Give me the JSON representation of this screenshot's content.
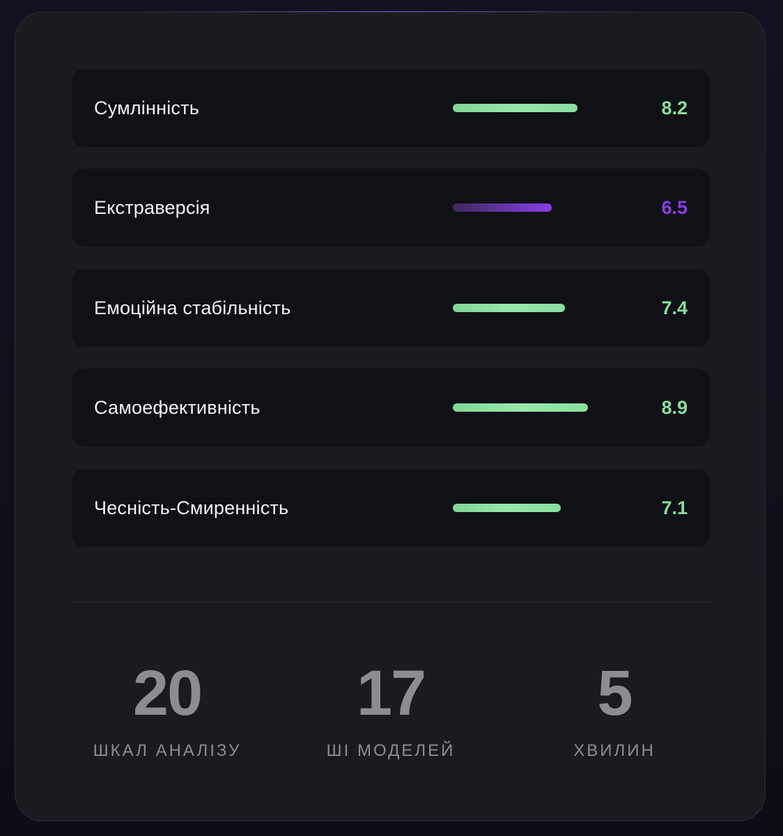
{
  "traits": [
    {
      "label": "Сумлінність",
      "value": "8.2",
      "score": 8.2,
      "color": "#86e09b",
      "style": "green"
    },
    {
      "label": "Екстраверсія",
      "value": "6.5",
      "score": 6.5,
      "color": "#8a3ee8",
      "style": "purple"
    },
    {
      "label": "Емоційна стабільність",
      "value": "7.4",
      "score": 7.4,
      "color": "#86e09b",
      "style": "green"
    },
    {
      "label": "Самоефективність",
      "value": "8.9",
      "score": 8.9,
      "color": "#86e09b",
      "style": "green"
    },
    {
      "label": "Чесність-Смиренність",
      "value": "7.1",
      "score": 7.1,
      "color": "#86e09b",
      "style": "green"
    }
  ],
  "stats": [
    {
      "number": "20",
      "label": "ШКАЛ АНАЛІЗУ"
    },
    {
      "number": "17",
      "label": "ШІ МОДЕЛЕЙ"
    },
    {
      "number": "5",
      "label": "ХВИЛИН"
    }
  ],
  "colors": {
    "accent_green": "#86e09b",
    "accent_purple": "#8a3ee8",
    "card_bg": "#1a1b21",
    "row_bg": "#101017",
    "muted": "#8c8c92"
  }
}
